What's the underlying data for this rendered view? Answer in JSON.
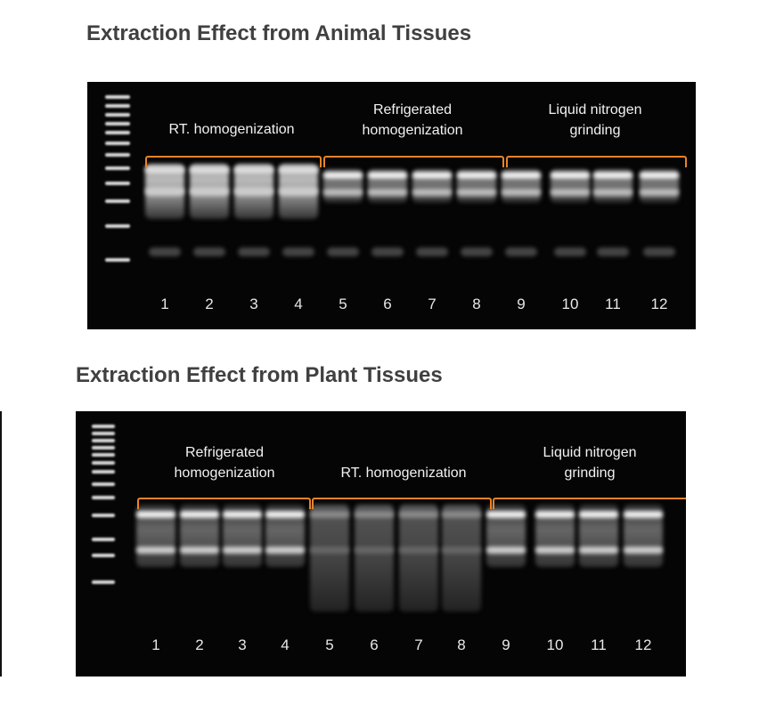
{
  "animal": {
    "title": "Extraction Effect from Animal Tissues",
    "groups": [
      {
        "lines": [
          "RT. homogenization"
        ]
      },
      {
        "lines": [
          "Refrigerated",
          "homogenization"
        ]
      },
      {
        "lines": [
          "Liquid nitrogen",
          "grinding"
        ]
      }
    ],
    "lanes": [
      "1",
      "2",
      "3",
      "4",
      "5",
      "6",
      "7",
      "8",
      "9",
      "10",
      "11",
      "12"
    ]
  },
  "plant": {
    "title": "Extraction Effect from Plant Tissues",
    "groups": [
      {
        "lines": [
          "Refrigerated",
          "homogenization"
        ]
      },
      {
        "lines": [
          "RT. homogenization"
        ]
      },
      {
        "lines": [
          "Liquid nitrogen",
          "grinding"
        ]
      }
    ],
    "lanes": [
      "1",
      "2",
      "3",
      "4",
      "5",
      "6",
      "7",
      "8",
      "9",
      "10",
      "11",
      "12"
    ]
  },
  "colors": {
    "bracket": "#e8832a",
    "gel": "#050505"
  }
}
